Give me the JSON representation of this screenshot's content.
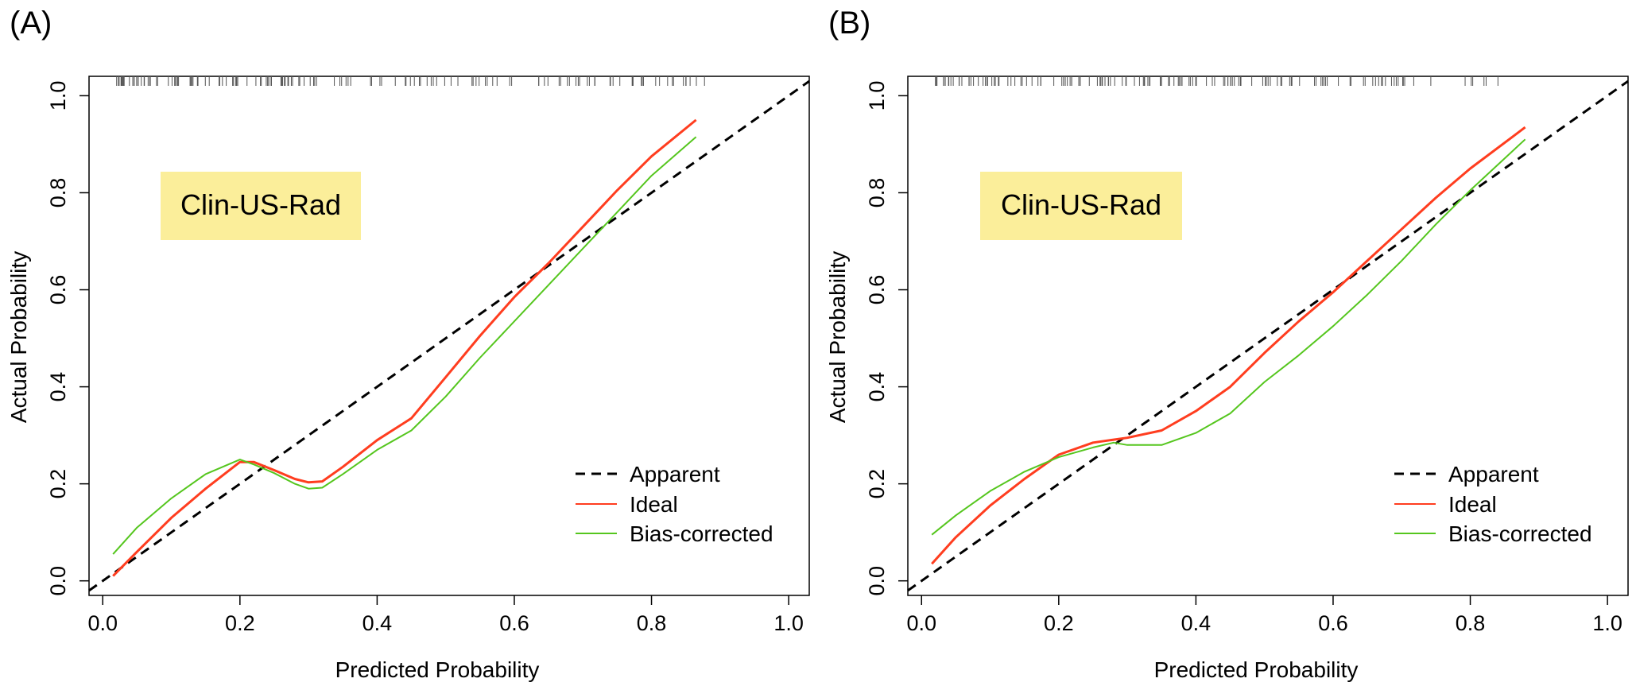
{
  "figure": {
    "panel_labels": [
      "(A)",
      "(B)"
    ],
    "legend_entries": [
      {
        "label": "Apparent",
        "color": "#000000",
        "style": "dashed"
      },
      {
        "label": "Ideal",
        "color": "#ff3d1f",
        "style": "solid"
      },
      {
        "label": "Bias-corrected",
        "color": "#55c61e",
        "style": "solid"
      }
    ],
    "colors": {
      "apparent": "#000000",
      "ideal": "#ff3d1f",
      "bias_corrected": "#55c61e",
      "badge": "#fbee9a"
    }
  },
  "chart_data": [
    {
      "type": "line",
      "panel": "(A)",
      "title": "",
      "annotation": "Clin-US-Rad",
      "xlabel": "Predicted Probability",
      "ylabel": "Actual Probability",
      "xlim": [
        -0.02,
        1.03
      ],
      "ylim": [
        -0.03,
        1.04
      ],
      "xticks": [
        "0.0",
        "0.2",
        "0.4",
        "0.6",
        "0.8",
        "1.0"
      ],
      "yticks": [
        "0.0",
        "0.2",
        "0.4",
        "0.6",
        "0.8",
        "1.0"
      ],
      "legend_position": "bottom-right",
      "series": [
        {
          "name": "Apparent",
          "x": [
            -0.02,
            1.03
          ],
          "y": [
            -0.02,
            1.03
          ]
        },
        {
          "name": "Ideal",
          "x": [
            0.015,
            0.05,
            0.1,
            0.15,
            0.2,
            0.22,
            0.25,
            0.28,
            0.3,
            0.32,
            0.35,
            0.4,
            0.45,
            0.5,
            0.55,
            0.6,
            0.65,
            0.7,
            0.75,
            0.8,
            0.865
          ],
          "y": [
            0.01,
            0.06,
            0.13,
            0.19,
            0.245,
            0.245,
            0.228,
            0.21,
            0.203,
            0.205,
            0.235,
            0.29,
            0.335,
            0.42,
            0.505,
            0.585,
            0.655,
            0.73,
            0.805,
            0.875,
            0.95
          ]
        },
        {
          "name": "Bias-corrected",
          "x": [
            0.015,
            0.05,
            0.1,
            0.15,
            0.2,
            0.22,
            0.25,
            0.28,
            0.3,
            0.32,
            0.35,
            0.4,
            0.45,
            0.5,
            0.55,
            0.6,
            0.65,
            0.7,
            0.75,
            0.8,
            0.865
          ],
          "y": [
            0.055,
            0.11,
            0.17,
            0.22,
            0.25,
            0.24,
            0.222,
            0.2,
            0.19,
            0.192,
            0.22,
            0.27,
            0.31,
            0.38,
            0.46,
            0.535,
            0.61,
            0.685,
            0.76,
            0.835,
            0.915
          ]
        }
      ]
    },
    {
      "type": "line",
      "panel": "(B)",
      "title": "",
      "annotation": "Clin-US-Rad",
      "xlabel": "Predicted Probability",
      "ylabel": "Actual Probability",
      "xlim": [
        -0.02,
        1.03
      ],
      "ylim": [
        -0.03,
        1.04
      ],
      "xticks": [
        "0.0",
        "0.2",
        "0.4",
        "0.6",
        "0.8",
        "1.0"
      ],
      "yticks": [
        "0.0",
        "0.2",
        "0.4",
        "0.6",
        "0.8",
        "1.0"
      ],
      "legend_position": "bottom-right",
      "series": [
        {
          "name": "Apparent",
          "x": [
            -0.02,
            1.03
          ],
          "y": [
            -0.02,
            1.03
          ]
        },
        {
          "name": "Ideal",
          "x": [
            0.015,
            0.05,
            0.1,
            0.15,
            0.2,
            0.25,
            0.3,
            0.35,
            0.4,
            0.45,
            0.5,
            0.55,
            0.6,
            0.65,
            0.7,
            0.75,
            0.8,
            0.88
          ],
          "y": [
            0.035,
            0.09,
            0.155,
            0.21,
            0.26,
            0.285,
            0.295,
            0.31,
            0.35,
            0.4,
            0.47,
            0.535,
            0.595,
            0.66,
            0.725,
            0.79,
            0.85,
            0.935
          ]
        },
        {
          "name": "Bias-corrected",
          "x": [
            0.015,
            0.05,
            0.1,
            0.15,
            0.2,
            0.25,
            0.28,
            0.3,
            0.35,
            0.4,
            0.45,
            0.5,
            0.55,
            0.6,
            0.65,
            0.7,
            0.75,
            0.8,
            0.88
          ],
          "y": [
            0.095,
            0.135,
            0.185,
            0.225,
            0.255,
            0.275,
            0.285,
            0.28,
            0.28,
            0.305,
            0.345,
            0.41,
            0.465,
            0.525,
            0.59,
            0.66,
            0.735,
            0.805,
            0.91
          ]
        }
      ]
    }
  ]
}
